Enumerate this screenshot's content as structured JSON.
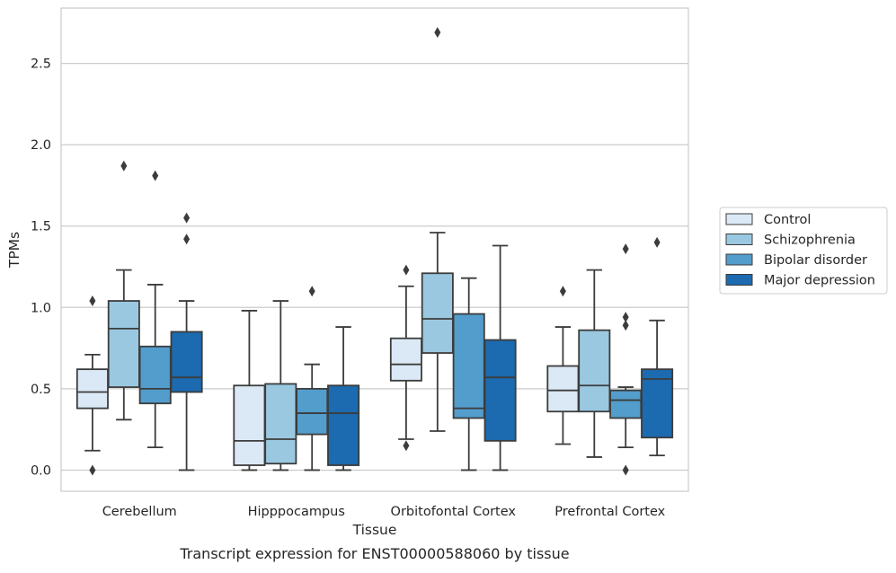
{
  "chart_data": {
    "type": "boxplot",
    "xlabel": "Tissue",
    "ylabel": "TPMs",
    "caption": "Transcript expression for ENST00000588060 by tissue",
    "ylim": [
      -0.13,
      2.84
    ],
    "yticks": [
      "0.0",
      "0.5",
      "1.0",
      "1.5",
      "2.0",
      "2.5"
    ],
    "grid": "horizontal",
    "legend_position": "right, outside plot",
    "categories": [
      "Cerebellum",
      "Hipppocampus",
      "Orbitofontal Cortex",
      "Prefrontal Cortex"
    ],
    "series": [
      {
        "name": "Control",
        "color": "#dbe9f6",
        "boxes": [
          {
            "whislo": 0.12,
            "q1": 0.38,
            "med": 0.48,
            "q3": 0.62,
            "whishi": 0.71,
            "fliers": [
              1.04,
              0.0
            ]
          },
          {
            "whislo": 0.0,
            "q1": 0.03,
            "med": 0.18,
            "q3": 0.52,
            "whishi": 0.98,
            "fliers": []
          },
          {
            "whislo": 0.19,
            "q1": 0.55,
            "med": 0.65,
            "q3": 0.81,
            "whishi": 1.13,
            "fliers": [
              1.23,
              0.15
            ]
          },
          {
            "whislo": 0.16,
            "q1": 0.36,
            "med": 0.49,
            "q3": 0.64,
            "whishi": 0.88,
            "fliers": [
              1.1
            ]
          }
        ]
      },
      {
        "name": "Schizophrenia",
        "color": "#9ac8e0",
        "boxes": [
          {
            "whislo": 0.31,
            "q1": 0.51,
            "med": 0.87,
            "q3": 1.04,
            "whishi": 1.23,
            "fliers": [
              1.87
            ]
          },
          {
            "whislo": 0.0,
            "q1": 0.04,
            "med": 0.19,
            "q3": 0.53,
            "whishi": 1.04,
            "fliers": []
          },
          {
            "whislo": 0.24,
            "q1": 0.72,
            "med": 0.93,
            "q3": 1.21,
            "whishi": 1.46,
            "fliers": [
              2.69
            ]
          },
          {
            "whislo": 0.08,
            "q1": 0.36,
            "med": 0.52,
            "q3": 0.86,
            "whishi": 1.23,
            "fliers": []
          }
        ]
      },
      {
        "name": "Bipolar disorder",
        "color": "#529dcc",
        "boxes": [
          {
            "whislo": 0.14,
            "q1": 0.41,
            "med": 0.5,
            "q3": 0.76,
            "whishi": 1.14,
            "fliers": [
              1.81
            ]
          },
          {
            "whislo": 0.0,
            "q1": 0.22,
            "med": 0.35,
            "q3": 0.5,
            "whishi": 0.65,
            "fliers": [
              1.1
            ]
          },
          {
            "whislo": 0.0,
            "q1": 0.32,
            "med": 0.38,
            "q3": 0.96,
            "whishi": 1.18,
            "fliers": []
          },
          {
            "whislo": 0.14,
            "q1": 0.32,
            "med": 0.43,
            "q3": 0.49,
            "whishi": 0.51,
            "fliers": [
              1.36,
              0.94,
              0.89,
              0.0
            ]
          }
        ]
      },
      {
        "name": "Major depression",
        "color": "#1c6aaf",
        "boxes": [
          {
            "whislo": 0.0,
            "q1": 0.48,
            "med": 0.57,
            "q3": 0.85,
            "whishi": 1.04,
            "fliers": [
              1.55,
              1.42
            ]
          },
          {
            "whislo": 0.0,
            "q1": 0.03,
            "med": 0.35,
            "q3": 0.52,
            "whishi": 0.88,
            "fliers": []
          },
          {
            "whislo": 0.0,
            "q1": 0.18,
            "med": 0.57,
            "q3": 0.8,
            "whishi": 1.38,
            "fliers": []
          },
          {
            "whislo": 0.09,
            "q1": 0.2,
            "med": 0.56,
            "q3": 0.62,
            "whishi": 0.92,
            "fliers": [
              1.4
            ]
          }
        ]
      }
    ]
  }
}
